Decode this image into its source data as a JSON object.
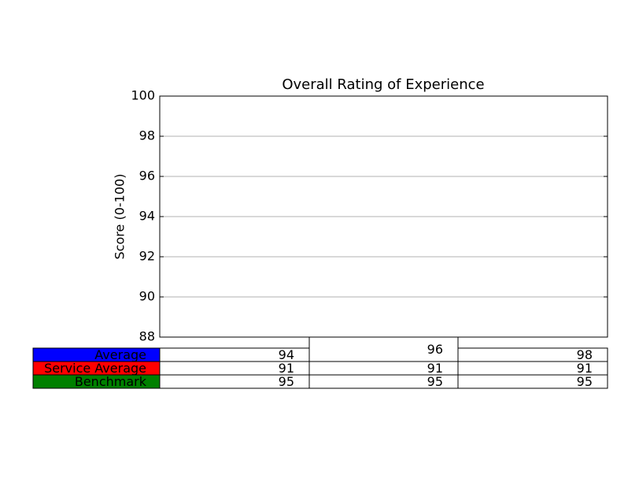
{
  "chart_data": {
    "type": "table",
    "title": "Overall Rating of Experience",
    "y_label": "Score (0-100)",
    "ylim": [
      88,
      100
    ],
    "yticks": [
      88,
      90,
      92,
      94,
      96,
      98,
      100
    ],
    "grid": true,
    "series": [
      {
        "name": "Average",
        "color": "#0000ff",
        "values": [
          94,
          96,
          98
        ]
      },
      {
        "name": "Service Average",
        "color": "#ff0000",
        "values": [
          91,
          91,
          91
        ]
      },
      {
        "name": "Benchmark",
        "color": "#008000",
        "values": [
          95,
          95,
          95
        ]
      }
    ]
  }
}
